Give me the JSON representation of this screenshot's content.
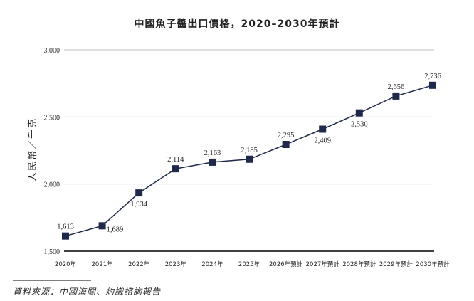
{
  "chart_data": {
    "type": "line",
    "title": "中國魚子醬出口價格，2020–2030年預計",
    "ylabel": "人民幣／千克",
    "xlabel": "",
    "categories": [
      "2020年",
      "2021年",
      "2022年",
      "2023年",
      "2024年",
      "2025年",
      "2026年預計",
      "2027年預計",
      "2028年預計",
      "2029年預計",
      "2030年預計"
    ],
    "series": [
      {
        "values": [
          1613,
          1689,
          1934,
          2114,
          2163,
          2185,
          2295,
          2409,
          2530,
          2656,
          2736
        ]
      }
    ],
    "data_labels": [
      "1,613",
      "1,689",
      "1,934",
      "2,114",
      "2,163",
      "2,185",
      "2,295",
      "2,409",
      "2,530",
      "2,656",
      "2,736"
    ],
    "ylim": [
      1500,
      3000
    ],
    "yticks": [
      1500,
      2000,
      2500,
      3000
    ],
    "ytick_labels": [
      "1,500",
      "2,000",
      "2,500",
      "3,000"
    ],
    "grid": true,
    "colors": {
      "line": "#1f2a4a",
      "marker": "#1f2a4a",
      "grid": "#bfbfbf",
      "axis": "#000000"
    },
    "source": "資料來源：中國海關、灼識諮詢報告"
  }
}
